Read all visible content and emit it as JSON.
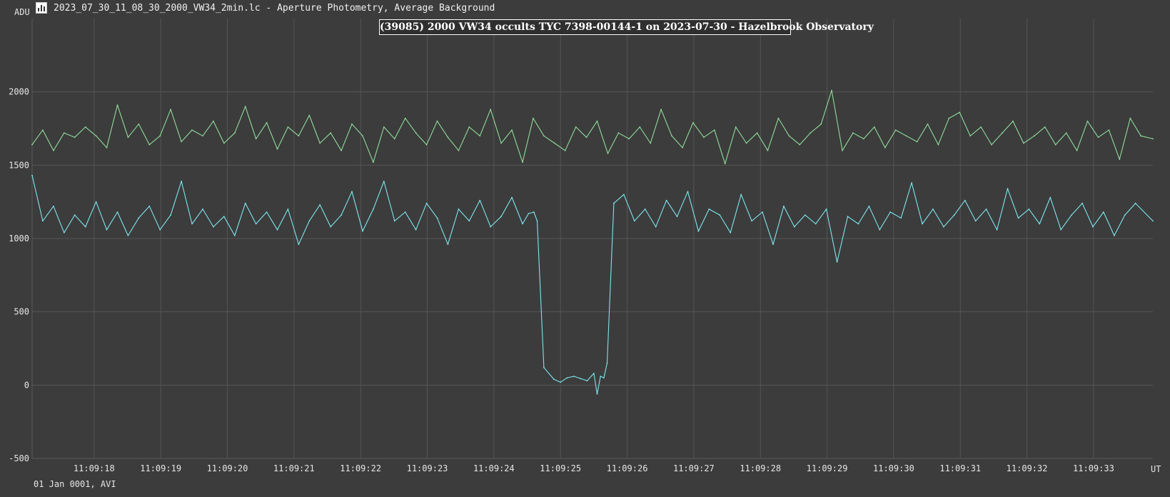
{
  "window": {
    "title": "2023_07_30_11_08_30_2000_VW34_2min.lc - Aperture Photometry, Average Background",
    "icon": "lightcurve-app-icon"
  },
  "footer": {
    "date_text": "01 Jan 0001, AVI"
  },
  "colors": {
    "background": "#3c3c3c",
    "grid": "#555555",
    "comparison_series": "#8fdc9a",
    "target_series": "#7ee6ee"
  },
  "chart_data": {
    "type": "line",
    "title": "(39085) 2000 VW34 occults TYC 7398-00144-1 on 2023-07-30 - Hazelbrook Observatory",
    "ylabel": "ADU",
    "xlabel": "UT",
    "ylim": [
      -500,
      2500
    ],
    "xlim": [
      17.07,
      33.89
    ],
    "y_ticks": [
      -500,
      0,
      500,
      1000,
      1500,
      2000
    ],
    "x_ticks": [
      "11:09:18",
      "11:09:19",
      "11:09:20",
      "11:09:21",
      "11:09:22",
      "11:09:23",
      "11:09:24",
      "11:09:25",
      "11:09:26",
      "11:09:27",
      "11:09:28",
      "11:09:29",
      "11:09:30",
      "11:09:31",
      "11:09:32",
      "11:09:33"
    ],
    "x_tick_seconds": [
      18,
      19,
      20,
      21,
      22,
      23,
      24,
      25,
      26,
      27,
      28,
      29,
      30,
      31,
      32,
      33
    ],
    "grid": true,
    "legend": "none",
    "series": [
      {
        "role": "comparison",
        "x": [
          17.07,
          17.23,
          17.39,
          17.55,
          17.71,
          17.87,
          18.03,
          18.19,
          18.35,
          18.51,
          18.67,
          18.83,
          18.99,
          19.15,
          19.31,
          19.47,
          19.63,
          19.79,
          19.95,
          20.11,
          20.27,
          20.43,
          20.59,
          20.75,
          20.91,
          21.07,
          21.23,
          21.39,
          21.55,
          21.71,
          21.87,
          22.03,
          22.19,
          22.35,
          22.51,
          22.67,
          22.83,
          22.99,
          23.15,
          23.31,
          23.47,
          23.63,
          23.79,
          23.95,
          24.11,
          24.27,
          24.43,
          24.59,
          24.75,
          24.91,
          25.07,
          25.23,
          25.39,
          25.55,
          25.71,
          25.87,
          26.03,
          26.19,
          26.35,
          26.51,
          26.67,
          26.83,
          26.99,
          27.15,
          27.31,
          27.47,
          27.63,
          27.79,
          27.95,
          28.11,
          28.27,
          28.43,
          28.59,
          28.75,
          28.91,
          29.07,
          29.23,
          29.39,
          29.55,
          29.71,
          29.87,
          30.03,
          30.19,
          30.35,
          30.51,
          30.67,
          30.83,
          30.99,
          31.15,
          31.31,
          31.47,
          31.63,
          31.79,
          31.95,
          32.11,
          32.27,
          32.43,
          32.59,
          32.75,
          32.91,
          33.07,
          33.23,
          33.39,
          33.55,
          33.71,
          33.89
        ],
        "y": [
          1640,
          1740,
          1600,
          1720,
          1690,
          1760,
          1700,
          1620,
          1910,
          1690,
          1780,
          1640,
          1700,
          1880,
          1660,
          1740,
          1700,
          1800,
          1650,
          1720,
          1900,
          1680,
          1790,
          1610,
          1760,
          1700,
          1840,
          1650,
          1720,
          1600,
          1780,
          1700,
          1520,
          1760,
          1680,
          1820,
          1720,
          1640,
          1800,
          1690,
          1600,
          1760,
          1700,
          1880,
          1650,
          1740,
          1520,
          1820,
          1700,
          1650,
          1600,
          1760,
          1690,
          1800,
          1580,
          1720,
          1680,
          1760,
          1650,
          1880,
          1700,
          1620,
          1790,
          1690,
          1740,
          1510,
          1760,
          1650,
          1720,
          1600,
          1820,
          1700,
          1640,
          1720,
          1780,
          2010,
          1600,
          1720,
          1680,
          1760,
          1620,
          1740,
          1700,
          1660,
          1780,
          1640,
          1820,
          1860,
          1700,
          1760,
          1640,
          1720,
          1800,
          1650,
          1700,
          1760,
          1640,
          1720,
          1600,
          1800,
          1690,
          1740,
          1540,
          1820,
          1700,
          1680
        ],
        "name": ""
      },
      {
        "role": "target",
        "x": [
          17.07,
          17.23,
          17.39,
          17.55,
          17.71,
          17.87,
          18.03,
          18.19,
          18.35,
          18.51,
          18.67,
          18.83,
          18.99,
          19.15,
          19.31,
          19.47,
          19.63,
          19.79,
          19.95,
          20.11,
          20.27,
          20.43,
          20.59,
          20.75,
          20.91,
          21.07,
          21.23,
          21.39,
          21.55,
          21.71,
          21.87,
          22.03,
          22.19,
          22.35,
          22.51,
          22.67,
          22.83,
          22.99,
          23.15,
          23.31,
          23.47,
          23.63,
          23.79,
          23.95,
          24.11,
          24.27,
          24.43,
          24.52,
          24.6,
          24.65,
          24.75,
          24.9,
          25.0,
          25.1,
          25.2,
          25.3,
          25.4,
          25.5,
          25.55,
          25.6,
          25.65,
          25.7,
          25.8,
          25.95,
          26.11,
          26.27,
          26.43,
          26.59,
          26.75,
          26.91,
          27.07,
          27.23,
          27.39,
          27.55,
          27.71,
          27.87,
          28.03,
          28.19,
          28.35,
          28.51,
          28.67,
          28.83,
          28.99,
          29.15,
          29.31,
          29.47,
          29.63,
          29.79,
          29.95,
          30.11,
          30.27,
          30.43,
          30.59,
          30.75,
          30.91,
          31.07,
          31.23,
          31.39,
          31.55,
          31.71,
          31.87,
          32.03,
          32.19,
          32.35,
          32.51,
          32.67,
          32.83,
          32.99,
          33.15,
          33.31,
          33.47,
          33.63,
          33.89
        ],
        "y": [
          1430,
          1120,
          1220,
          1040,
          1160,
          1080,
          1250,
          1060,
          1180,
          1020,
          1140,
          1220,
          1060,
          1160,
          1390,
          1100,
          1200,
          1080,
          1150,
          1020,
          1240,
          1100,
          1180,
          1060,
          1200,
          960,
          1120,
          1230,
          1080,
          1160,
          1320,
          1050,
          1200,
          1390,
          1120,
          1180,
          1060,
          1240,
          1140,
          960,
          1200,
          1120,
          1260,
          1080,
          1150,
          1280,
          1100,
          1170,
          1180,
          1120,
          120,
          40,
          20,
          50,
          60,
          45,
          30,
          80,
          -60,
          60,
          50,
          150,
          1240,
          1300,
          1120,
          1200,
          1080,
          1260,
          1150,
          1320,
          1050,
          1200,
          1160,
          1040,
          1300,
          1120,
          1180,
          960,
          1220,
          1080,
          1160,
          1100,
          1200,
          840,
          1150,
          1100,
          1220,
          1060,
          1180,
          1140,
          1380,
          1100,
          1200,
          1080,
          1160,
          1260,
          1120,
          1200,
          1060,
          1340,
          1140,
          1200,
          1100,
          1280,
          1060,
          1160,
          1240,
          1080,
          1180,
          1020,
          1160,
          1240,
          1120
        ],
        "name": ""
      }
    ]
  }
}
